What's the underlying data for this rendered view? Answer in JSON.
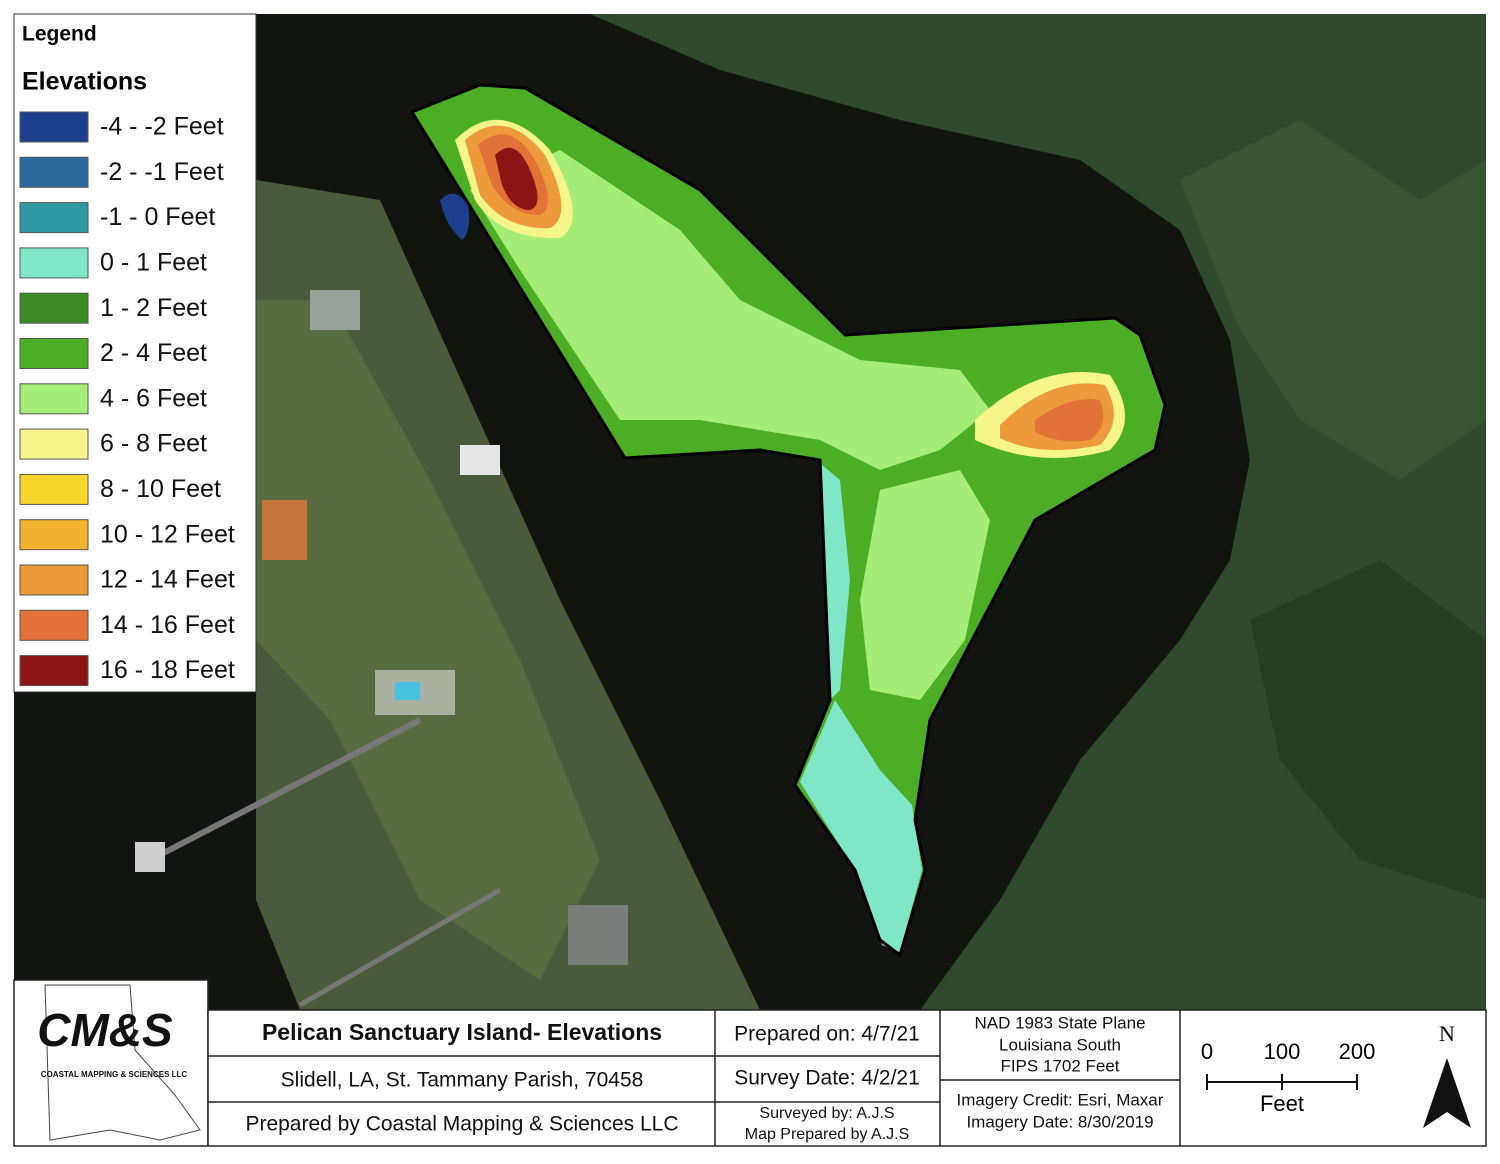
{
  "legend": {
    "title": "Legend",
    "subtitle": "Elevations",
    "items": [
      {
        "label": "-4 - -2 Feet",
        "color": "#1d3f8e"
      },
      {
        "label": "-2 - -1 Feet",
        "color": "#2a6a9a"
      },
      {
        "label": "-1 - 0 Feet",
        "color": "#2f9aa3"
      },
      {
        "label": "0 - 1 Feet",
        "color": "#7fe6c8"
      },
      {
        "label": "1 - 2 Feet",
        "color": "#3a8a25"
      },
      {
        "label": "2 - 4 Feet",
        "color": "#4cae24"
      },
      {
        "label": "4 - 6  Feet",
        "color": "#a5ec78"
      },
      {
        "label": "6 - 8 Feet",
        "color": "#f5f58a"
      },
      {
        "label": "8 - 10 Feet",
        "color": "#f6d62a"
      },
      {
        "label": "10 - 12 Feet",
        "color": "#f2b330"
      },
      {
        "label": "12 - 14 Feet",
        "color": "#ec9a3a"
      },
      {
        "label": "14 - 16 Feet",
        "color": "#e27238"
      },
      {
        "label": "16 - 18 Feet",
        "color": "#8c1414"
      }
    ]
  },
  "title_block": {
    "logo_text": "CM&S",
    "logo_subtext": "COASTAL MAPPING & SCIENCES LLC",
    "title": "Pelican Sanctuary Island- Elevations",
    "location": "Slidell, LA, St. Tammany Parish, 70458",
    "prepared_by": "Prepared by Coastal Mapping & Sciences LLC",
    "prepared_on": "Prepared on: 4/7/21",
    "survey_date": "Survey Date: 4/2/21",
    "surveyed_by": "Surveyed by: A.J.S",
    "map_prepared_by": "Map Prepared by A.J.S",
    "projection": [
      "NAD 1983 State Plane",
      "Louisiana South",
      "FIPS 1702 Feet"
    ],
    "imagery_credit": "Imagery Credit: Esri, Maxar",
    "imagery_date": "Imagery Date: 8/30/2019"
  },
  "scale_bar": {
    "ticks": [
      0,
      100,
      200
    ],
    "unit": "Feet"
  },
  "north_arrow": "N"
}
